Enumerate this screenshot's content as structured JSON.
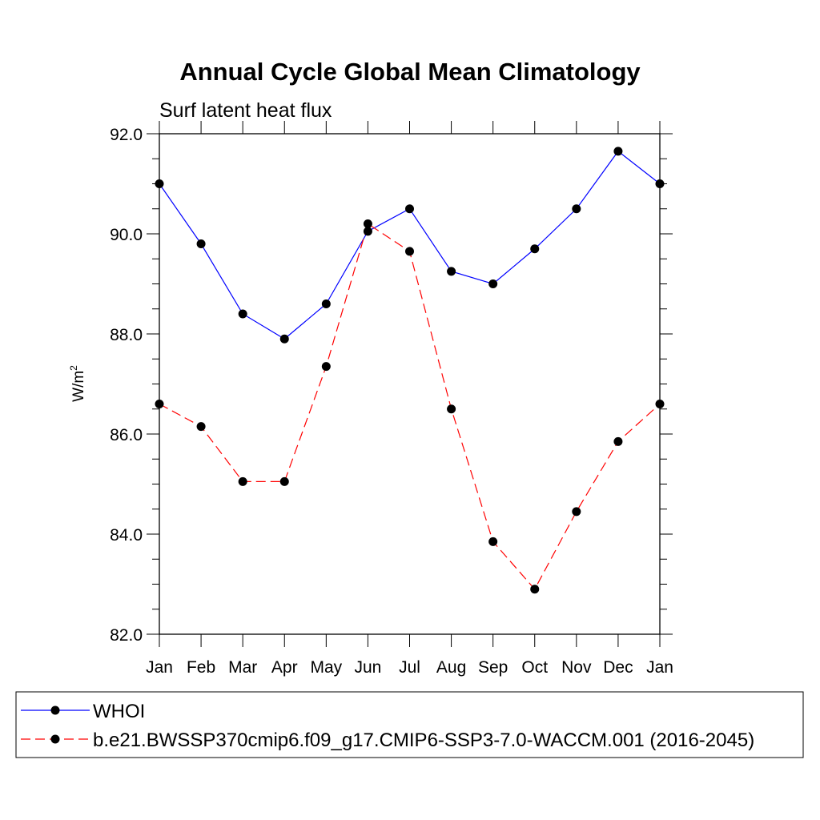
{
  "chart_data": {
    "type": "line",
    "title": "Annual Cycle Global Mean Climatology",
    "subtitle": "Surf latent heat flux",
    "ylabel": "W/m",
    "ylabel_superscript": "2",
    "ylim": [
      82.0,
      92.0
    ],
    "yticks": [
      82.0,
      84.0,
      86.0,
      88.0,
      90.0,
      92.0
    ],
    "ytick_labels": [
      "82.0",
      "84.0",
      "86.0",
      "88.0",
      "90.0",
      "92.0"
    ],
    "categories": [
      "Jan",
      "Feb",
      "Mar",
      "Apr",
      "May",
      "Jun",
      "Jul",
      "Aug",
      "Sep",
      "Oct",
      "Nov",
      "Dec",
      "Jan"
    ],
    "grid": false,
    "legend_placement": "bottom",
    "series": [
      {
        "name": "WHOI",
        "color": "#0000ff",
        "style": "solid",
        "marker": "filled-circle",
        "values": [
          91.0,
          89.8,
          88.4,
          87.9,
          88.6,
          90.05,
          90.5,
          89.25,
          89.0,
          89.7,
          90.5,
          91.65,
          91.0
        ]
      },
      {
        "name": "b.e21.BWSSP370cmip6.f09_g17.CMIP6-SSP3-7.0-WACCM.001 (2016-2045)",
        "color": "#ff0000",
        "style": "dashed",
        "marker": "filled-circle",
        "values": [
          86.6,
          86.15,
          85.05,
          85.05,
          87.35,
          90.2,
          89.65,
          86.5,
          83.85,
          82.9,
          84.45,
          85.85,
          86.6
        ]
      }
    ]
  }
}
